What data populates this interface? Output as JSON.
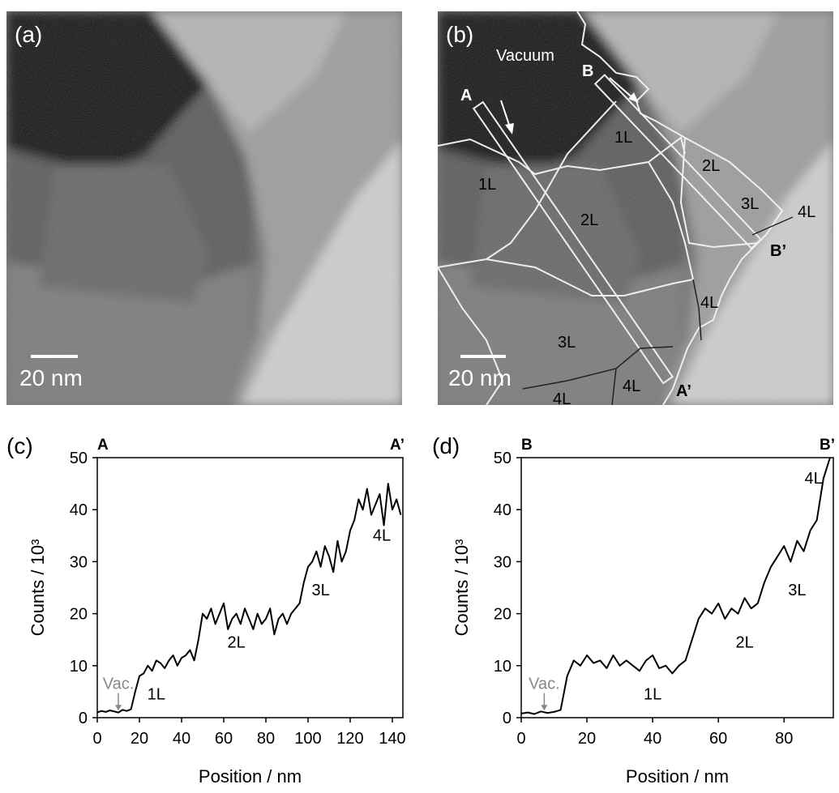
{
  "images": [
    {
      "panel_label": "(a)",
      "scale_bar": "20 nm"
    },
    {
      "panel_label": "(b)",
      "scale_bar": "20 nm",
      "region_labels": [
        "Vacuum",
        "1L",
        "1L",
        "2L",
        "2L",
        "3L",
        "3L",
        "4L",
        "4L",
        "4L",
        "4L"
      ],
      "line_labels": [
        "A",
        "B",
        "A’",
        "B’"
      ]
    }
  ],
  "chart_data": [
    {
      "type": "line",
      "panel_label": "(c)",
      "start_label": "A",
      "end_label": "A’",
      "x_label": "Position / nm",
      "y_label": "Counts / 10³",
      "color": "#000000",
      "x": [
        0,
        2,
        4,
        6,
        8,
        10,
        12,
        14,
        16,
        18,
        20,
        22,
        24,
        26,
        28,
        30,
        32,
        34,
        36,
        38,
        40,
        42,
        44,
        46,
        48,
        50,
        52,
        54,
        56,
        58,
        60,
        62,
        64,
        66,
        68,
        70,
        72,
        74,
        76,
        78,
        80,
        82,
        84,
        86,
        88,
        90,
        92,
        94,
        96,
        98,
        100,
        102,
        104,
        106,
        108,
        110,
        112,
        114,
        116,
        118,
        120,
        122,
        124,
        126,
        128,
        130,
        132,
        134,
        136,
        138,
        140,
        142,
        144
      ],
      "y": [
        1.0,
        1.3,
        1.1,
        1.4,
        1.2,
        1.0,
        1.5,
        1.3,
        1.6,
        5,
        8,
        8.5,
        10,
        9,
        11,
        10.5,
        9.5,
        11,
        12,
        10,
        11.5,
        12,
        13,
        11,
        15,
        20,
        19,
        21,
        18,
        20,
        22,
        17,
        19,
        20,
        18,
        21,
        19,
        17,
        20,
        18,
        19,
        21,
        16,
        19,
        20,
        18,
        20,
        21,
        22,
        26,
        29,
        30,
        32,
        29,
        33,
        31,
        28,
        34,
        30,
        32,
        36,
        38,
        42,
        40,
        44,
        39,
        41,
        43,
        37,
        45,
        40,
        42,
        39
      ],
      "annotations": [
        "Vac.",
        "1L",
        "2L",
        "3L",
        "4L"
      ],
      "xlim": [
        0,
        145
      ],
      "ylim": [
        0,
        50
      ],
      "xticks": [
        0,
        20,
        40,
        60,
        80,
        100,
        120,
        140
      ],
      "yticks": [
        0,
        10,
        20,
        30,
        40,
        50
      ]
    },
    {
      "type": "line",
      "panel_label": "(d)",
      "start_label": "B",
      "end_label": "B’",
      "x_label": "Position / nm",
      "y_label": "Counts / 10³",
      "color": "#000000",
      "x": [
        0,
        2,
        4,
        6,
        8,
        10,
        12,
        14,
        16,
        18,
        20,
        22,
        24,
        26,
        28,
        30,
        32,
        34,
        36,
        38,
        40,
        42,
        44,
        46,
        48,
        50,
        52,
        54,
        56,
        58,
        60,
        62,
        64,
        66,
        68,
        70,
        72,
        74,
        76,
        78,
        80,
        82,
        84,
        86,
        88,
        90,
        92,
        94
      ],
      "y": [
        0.8,
        1.0,
        0.7,
        1.2,
        0.9,
        1.1,
        1.5,
        8,
        11,
        10,
        12,
        10.5,
        11,
        9.5,
        12,
        10,
        11,
        10,
        9,
        11,
        12,
        9.5,
        10,
        8.5,
        10,
        11,
        15,
        19,
        21,
        20,
        22,
        19,
        21,
        20,
        23,
        21,
        22,
        26,
        29,
        31,
        33,
        30,
        34,
        32,
        36,
        38,
        46,
        50
      ],
      "annotations": [
        "Vac.",
        "1L",
        "2L",
        "3L",
        "4L"
      ],
      "xlim": [
        0,
        95
      ],
      "ylim": [
        0,
        50
      ],
      "xticks": [
        0,
        20,
        40,
        60,
        80
      ],
      "yticks": [
        0,
        10,
        20,
        30,
        40,
        50
      ]
    }
  ]
}
